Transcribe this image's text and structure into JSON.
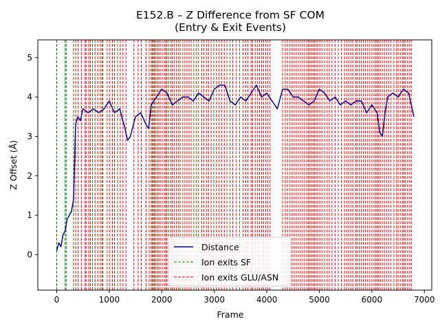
{
  "chart_data": {
    "type": "line",
    "title": "E152.B – Z Difference from SF COM",
    "subtitle": "(Entry & Exit Events)",
    "xlabel": "Frame",
    "ylabel": "Z Offset (Å)",
    "xlim": [
      -360,
      7140
    ],
    "ylim": [
      -0.9,
      5.45
    ],
    "x_ticks": [
      0,
      1000,
      2000,
      3000,
      4000,
      5000,
      6000,
      7000
    ],
    "y_ticks": [
      0,
      1,
      2,
      3,
      4,
      5
    ],
    "grid": false,
    "legend_position": "bottom-center",
    "colors": {
      "distance": "#00008b",
      "sf_exit": "#008000",
      "glu_exit": "#ff0000"
    },
    "series": [
      {
        "name": "Distance",
        "style": "solid",
        "x": [
          0,
          40,
          80,
          120,
          160,
          200,
          240,
          280,
          320,
          360,
          400,
          450,
          500,
          600,
          700,
          800,
          900,
          1000,
          1100,
          1200,
          1300,
          1350,
          1400,
          1500,
          1600,
          1700,
          1750,
          1800,
          1900,
          2000,
          2100,
          2200,
          2300,
          2400,
          2500,
          2600,
          2700,
          2800,
          2900,
          3000,
          3100,
          3200,
          3300,
          3400,
          3500,
          3600,
          3700,
          3800,
          3900,
          4000,
          4100,
          4200,
          4300,
          4400,
          4500,
          4600,
          4700,
          4800,
          4900,
          5000,
          5100,
          5200,
          5300,
          5400,
          5500,
          5600,
          5700,
          5800,
          5900,
          6000,
          6100,
          6150,
          6200,
          6250,
          6300,
          6400,
          6500,
          6600,
          6700,
          6800
        ],
        "y": [
          0.1,
          0.3,
          0.2,
          0.5,
          0.6,
          0.9,
          1.0,
          1.1,
          1.4,
          3.3,
          3.5,
          3.4,
          3.7,
          3.6,
          3.7,
          3.6,
          3.7,
          3.9,
          3.6,
          3.7,
          3.2,
          2.9,
          3.0,
          3.5,
          3.6,
          3.3,
          3.2,
          3.8,
          4.0,
          4.2,
          4.1,
          3.8,
          3.9,
          4.0,
          4.0,
          3.9,
          4.1,
          4.0,
          3.9,
          4.2,
          4.3,
          4.3,
          3.9,
          3.8,
          4.0,
          3.9,
          4.1,
          4.3,
          4.0,
          4.1,
          3.9,
          3.7,
          4.2,
          4.2,
          4.0,
          4.0,
          3.9,
          3.8,
          3.9,
          4.2,
          4.1,
          3.9,
          4.0,
          3.8,
          3.9,
          3.8,
          3.9,
          3.9,
          3.6,
          3.8,
          3.6,
          3.1,
          3.0,
          3.6,
          4.0,
          4.1,
          4.0,
          4.2,
          4.1,
          3.5
        ]
      },
      {
        "name": "Ion exits SF",
        "style": "dashed-vertical",
        "x": [
          0,
          160,
          180,
          320,
          680,
          880,
          1160,
          1820,
          1880,
          2130,
          2350,
          2610,
          2700,
          2990,
          3300,
          3480
        ]
      },
      {
        "name": "Ion exits GLU/ASN",
        "style": "dashed-vertical",
        "x": [
          360,
          410,
          470,
          540,
          560,
          610,
          640,
          730,
          780,
          830,
          860,
          960,
          1010,
          1060,
          1100,
          1210,
          1260,
          1320,
          1470,
          1550,
          1610,
          1700,
          1760,
          1800,
          1840,
          1860,
          1910,
          1940,
          1970,
          2010,
          2050,
          2080,
          2100,
          2170,
          2200,
          2240,
          2280,
          2320,
          2400,
          2440,
          2480,
          2520,
          2560,
          2660,
          2760,
          2800,
          2850,
          2890,
          2940,
          3040,
          3090,
          3140,
          3190,
          3240,
          3350,
          3420,
          3550,
          3600,
          3640,
          3700,
          3730,
          3780,
          3820,
          3860,
          3900,
          3940,
          3980,
          4020,
          4060,
          4300,
          4350,
          4390,
          4440,
          4480,
          4520,
          4560,
          4600,
          4640,
          4680,
          4720,
          4760,
          4790,
          4820,
          4850,
          4880,
          4910,
          4940,
          4970,
          5010,
          5050,
          5100,
          5150,
          5190,
          5240,
          5300,
          5360,
          5420,
          5480,
          5520,
          5560,
          5600,
          5640,
          5690,
          5720,
          5760,
          5800,
          5840,
          5880,
          5920,
          5960,
          6000,
          6040,
          6070,
          6100,
          6130,
          6160,
          6200,
          6240,
          6280,
          6320,
          6360,
          6420,
          6470,
          6500,
          6540,
          6580,
          6610,
          6640,
          6680,
          6720,
          6750
        ]
      }
    ]
  }
}
